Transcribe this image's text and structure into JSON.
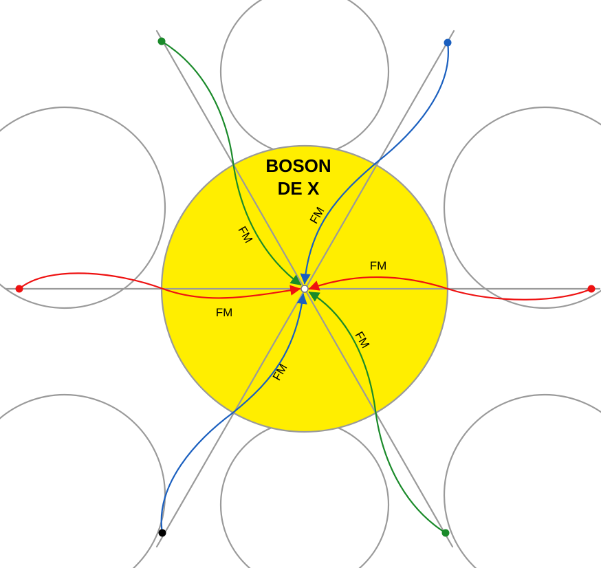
{
  "title_line1": "BOSON",
  "title_line2": "DE X",
  "labels": {
    "fm": "FM"
  },
  "colors": {
    "disk_fill": "#ffee00",
    "grey": "#9a9a9a",
    "red": "#ee1111",
    "green": "#1a8a2a",
    "blue": "#1a5fbf",
    "black": "#000000",
    "center": "#ffffff"
  }
}
